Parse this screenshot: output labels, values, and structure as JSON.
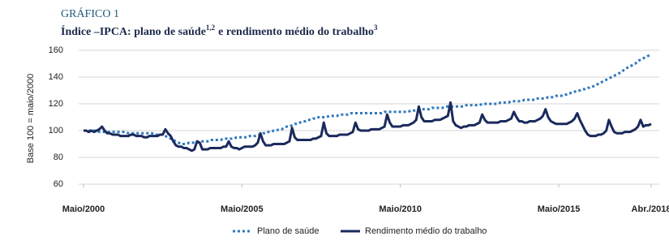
{
  "chart_data": {
    "type": "line",
    "title": "GRÁFICO 1",
    "subtitle": {
      "text": "Índice –IPCA: plano de saúde",
      "sup": "1,2",
      "text2": "e rendimento médio do trabalho",
      "sup2": "3"
    },
    "ylabel": "Base 100 = maio/2000",
    "xlim": [
      "2000-05",
      "2018-04"
    ],
    "xticks": [
      {
        "value": "2000-05",
        "label": "Maio/2000"
      },
      {
        "value": "2005-05",
        "label": "Maio/2005"
      },
      {
        "value": "2010-05",
        "label": "Maio/2010"
      },
      {
        "value": "2015-05",
        "label": "Maio/2015"
      },
      {
        "value": "2018-04",
        "label": "Abr./2018"
      }
    ],
    "ylim": [
      60,
      160
    ],
    "yticks": [
      60,
      80,
      100,
      120,
      140,
      160
    ],
    "grid": true,
    "x": [
      "2000-05",
      "2000-06",
      "2000-07",
      "2000-08",
      "2000-09",
      "2000-10",
      "2000-11",
      "2000-12",
      "2001-01",
      "2001-02",
      "2001-03",
      "2001-04",
      "2001-05",
      "2001-06",
      "2001-07",
      "2001-08",
      "2001-09",
      "2001-10",
      "2001-11",
      "2001-12",
      "2002-01",
      "2002-02",
      "2002-03",
      "2002-04",
      "2002-05",
      "2002-06",
      "2002-07",
      "2002-08",
      "2002-09",
      "2002-10",
      "2002-11",
      "2002-12",
      "2003-01",
      "2003-02",
      "2003-03",
      "2003-04",
      "2003-05",
      "2003-06",
      "2003-07",
      "2003-08",
      "2003-09",
      "2003-10",
      "2003-11",
      "2003-12",
      "2004-01",
      "2004-02",
      "2004-03",
      "2004-04",
      "2004-05",
      "2004-06",
      "2004-07",
      "2004-08",
      "2004-09",
      "2004-10",
      "2004-11",
      "2004-12",
      "2005-01",
      "2005-02",
      "2005-03",
      "2005-04",
      "2005-05",
      "2005-06",
      "2005-07",
      "2005-08",
      "2005-09",
      "2005-10",
      "2005-11",
      "2005-12",
      "2006-01",
      "2006-02",
      "2006-03",
      "2006-04",
      "2006-05",
      "2006-06",
      "2006-07",
      "2006-08",
      "2006-09",
      "2006-10",
      "2006-11",
      "2006-12",
      "2007-01",
      "2007-02",
      "2007-03",
      "2007-04",
      "2007-05",
      "2007-06",
      "2007-07",
      "2007-08",
      "2007-09",
      "2007-10",
      "2007-11",
      "2007-12",
      "2008-01",
      "2008-02",
      "2008-03",
      "2008-04",
      "2008-05",
      "2008-06",
      "2008-07",
      "2008-08",
      "2008-09",
      "2008-10",
      "2008-11",
      "2008-12",
      "2009-01",
      "2009-02",
      "2009-03",
      "2009-04",
      "2009-05",
      "2009-06",
      "2009-07",
      "2009-08",
      "2009-09",
      "2009-10",
      "2009-11",
      "2009-12",
      "2010-01",
      "2010-02",
      "2010-03",
      "2010-04",
      "2010-05",
      "2010-06",
      "2010-07",
      "2010-08",
      "2010-09",
      "2010-10",
      "2010-11",
      "2010-12",
      "2011-01",
      "2011-02",
      "2011-03",
      "2011-04",
      "2011-05",
      "2011-06",
      "2011-07",
      "2011-08",
      "2011-09",
      "2011-10",
      "2011-11",
      "2011-12",
      "2012-01",
      "2012-02",
      "2012-03",
      "2012-04",
      "2012-05",
      "2012-06",
      "2012-07",
      "2012-08",
      "2012-09",
      "2012-10",
      "2012-11",
      "2012-12",
      "2013-01",
      "2013-02",
      "2013-03",
      "2013-04",
      "2013-05",
      "2013-06",
      "2013-07",
      "2013-08",
      "2013-09",
      "2013-10",
      "2013-11",
      "2013-12",
      "2014-01",
      "2014-02",
      "2014-03",
      "2014-04",
      "2014-05",
      "2014-06",
      "2014-07",
      "2014-08",
      "2014-09",
      "2014-10",
      "2014-11",
      "2014-12",
      "2015-01",
      "2015-02",
      "2015-03",
      "2015-04",
      "2015-05",
      "2015-06",
      "2015-07",
      "2015-08",
      "2015-09",
      "2015-10",
      "2015-11",
      "2015-12",
      "2016-01",
      "2016-02",
      "2016-03",
      "2016-04",
      "2016-05",
      "2016-06",
      "2016-07",
      "2016-08",
      "2016-09",
      "2016-10",
      "2016-11",
      "2016-12",
      "2017-01",
      "2017-02",
      "2017-03",
      "2017-04",
      "2017-05",
      "2017-06",
      "2017-07",
      "2017-08",
      "2017-09",
      "2017-10",
      "2017-11",
      "2017-12",
      "2018-01",
      "2018-02",
      "2018-03",
      "2018-04"
    ],
    "series": [
      {
        "name": "Plano de saúde",
        "color": "#2f78bd",
        "dash": "dotted",
        "values": [
          100,
          100,
          100,
          100,
          100,
          100,
          99,
          99,
          99,
          99,
          99,
          99,
          99,
          99,
          99,
          99,
          99,
          98,
          98,
          98,
          98,
          98,
          98,
          98,
          98,
          98,
          98,
          97,
          97,
          97,
          97,
          96,
          95,
          94,
          93,
          92,
          91,
          90,
          90,
          90,
          91,
          91,
          91,
          91,
          92,
          92,
          92,
          92,
          93,
          93,
          93,
          93,
          93,
          94,
          94,
          94,
          94,
          94,
          95,
          95,
          95,
          95,
          95,
          96,
          96,
          96,
          97,
          97,
          98,
          98,
          99,
          99,
          100,
          100,
          101,
          101,
          102,
          103,
          103,
          104,
          105,
          105,
          106,
          107,
          107,
          108,
          108,
          109,
          109,
          110,
          110,
          110,
          110,
          111,
          111,
          111,
          111,
          112,
          112,
          112,
          112,
          113,
          113,
          113,
          113,
          113,
          113,
          113,
          113,
          113,
          113,
          113,
          113,
          113,
          114,
          114,
          114,
          114,
          114,
          114,
          114,
          114,
          114,
          114,
          115,
          115,
          115,
          116,
          116,
          116,
          116,
          116,
          117,
          117,
          117,
          117,
          117,
          118,
          118,
          118,
          118,
          118,
          118,
          118,
          118,
          119,
          119,
          119,
          119,
          119,
          119,
          120,
          120,
          120,
          120,
          120,
          120,
          120,
          121,
          121,
          121,
          121,
          122,
          122,
          122,
          122,
          122,
          123,
          123,
          123,
          123,
          123,
          124,
          124,
          124,
          124,
          125,
          125,
          125,
          126,
          126,
          126,
          127,
          127,
          128,
          128,
          129,
          130,
          130,
          131,
          131,
          132,
          132,
          133,
          134,
          135,
          136,
          137,
          138,
          139,
          140,
          141,
          142,
          143,
          144,
          146,
          147,
          148,
          149,
          150,
          152,
          153,
          154,
          155,
          156,
          157
        ]
      },
      {
        "name": "Rendimento médio do trabalho",
        "color": "#1b2a5c",
        "values": [
          100,
          100,
          99,
          100,
          99,
          100,
          101,
          103,
          100,
          98,
          98,
          97,
          97,
          97,
          96,
          96,
          96,
          96,
          97,
          97,
          96,
          96,
          96,
          95,
          95,
          96,
          96,
          96,
          96,
          97,
          97,
          101,
          98,
          96,
          92,
          89,
          88,
          88,
          87,
          87,
          86,
          85,
          86,
          92,
          91,
          86,
          86,
          86,
          87,
          87,
          87,
          87,
          87,
          88,
          88,
          92,
          88,
          87,
          87,
          86,
          87,
          88,
          88,
          88,
          88,
          89,
          91,
          98,
          92,
          89,
          89,
          89,
          90,
          90,
          90,
          90,
          90,
          91,
          92,
          102,
          95,
          93,
          93,
          93,
          93,
          93,
          93,
          94,
          94,
          95,
          96,
          106,
          98,
          96,
          96,
          96,
          96,
          97,
          97,
          97,
          97,
          98,
          99,
          106,
          101,
          100,
          100,
          100,
          100,
          101,
          101,
          101,
          101,
          102,
          103,
          112,
          106,
          103,
          103,
          103,
          103,
          104,
          104,
          104,
          105,
          106,
          108,
          118,
          110,
          107,
          107,
          107,
          107,
          108,
          108,
          108,
          109,
          110,
          111,
          121,
          107,
          104,
          103,
          102,
          103,
          103,
          104,
          104,
          104,
          105,
          106,
          112,
          108,
          106,
          106,
          106,
          106,
          106,
          107,
          107,
          107,
          108,
          109,
          114,
          110,
          107,
          107,
          106,
          106,
          107,
          107,
          107,
          108,
          109,
          111,
          116,
          110,
          107,
          106,
          105,
          105,
          105,
          105,
          105,
          106,
          107,
          109,
          113,
          108,
          104,
          100,
          97,
          96,
          96,
          96,
          97,
          97,
          98,
          100,
          108,
          103,
          99,
          98,
          98,
          98,
          99,
          99,
          99,
          100,
          101,
          103,
          108,
          103,
          104,
          104,
          105
        ]
      }
    ]
  }
}
